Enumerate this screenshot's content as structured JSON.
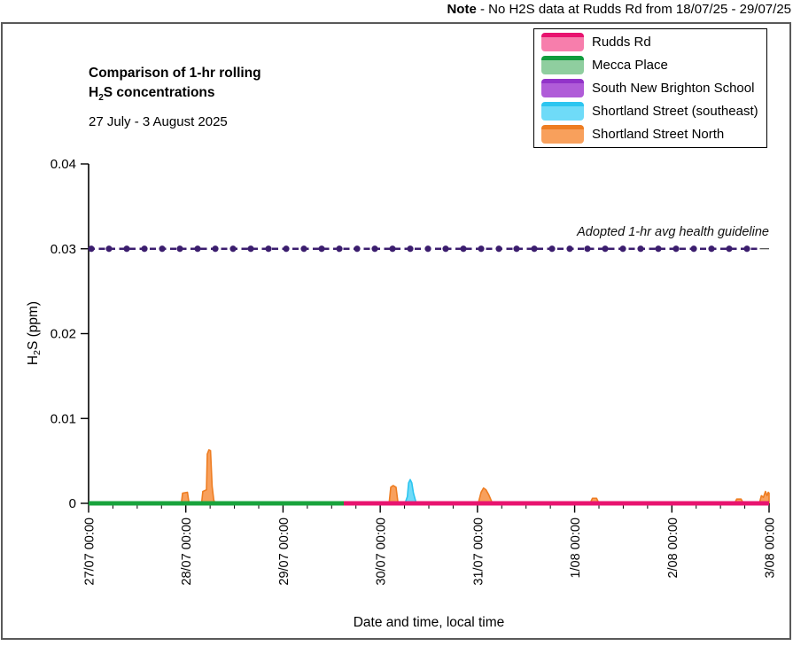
{
  "note": {
    "prefix": "Note",
    "rest": " - No H2S data at Rudds Rd from 18/07/25 - 29/07/25"
  },
  "title": {
    "line1": "Comparison of 1-hr rolling",
    "h2s_pre": "H",
    "h2s_sub": "2",
    "h2s_post": "S concentrations",
    "subtitle": "27 July - 3 August 2025"
  },
  "axis": {
    "y_pre": "H",
    "y_sub": "2",
    "y_post": "S (ppm)",
    "x_label": "Date and time, local time"
  },
  "legend": {
    "items": [
      {
        "label": "Rudds Rd",
        "fill": "#F77EAC",
        "stroke": "#E8136F"
      },
      {
        "label": "Mecca Place",
        "fill": "#8FCE9F",
        "stroke": "#119C3D"
      },
      {
        "label": "South New Brighton School",
        "fill": "#B05CD8",
        "stroke": "#9233C9"
      },
      {
        "label": "Shortland Street (southeast)",
        "fill": "#6FDBF8",
        "stroke": "#2CC5F0"
      },
      {
        "label": "Shortland Street North",
        "fill": "#F8A05C",
        "stroke": "#EE7D22"
      }
    ]
  },
  "colors": {
    "frame": "#595959",
    "axis": "#000000",
    "guideline": "#3B1D6E"
  },
  "chart_data": {
    "type": "line",
    "title": "Comparison of 1-hr rolling H2S concentrations",
    "subtitle": "27 July - 3 August 2025",
    "xlabel": "Date and time, local time",
    "ylabel": "H2S (ppm)",
    "ylim": [
      0,
      0.04
    ],
    "x_hours_range": [
      0,
      168
    ],
    "grid": false,
    "legend_position": "top-right",
    "y_ticks": [
      {
        "value": 0,
        "label": "0"
      },
      {
        "value": 0.01,
        "label": "0.01"
      },
      {
        "value": 0.02,
        "label": "0.02"
      },
      {
        "value": 0.03,
        "label": "0.03"
      },
      {
        "value": 0.04,
        "label": "0.04"
      }
    ],
    "x_ticks": [
      {
        "hour": 0,
        "label": "27/07 00:00"
      },
      {
        "hour": 24,
        "label": "28/07 00:00"
      },
      {
        "hour": 48,
        "label": "29/07 00:00"
      },
      {
        "hour": 72,
        "label": "30/07 00:00"
      },
      {
        "hour": 96,
        "label": "31/07 00:00"
      },
      {
        "hour": 120,
        "label": "1/08 00:00"
      },
      {
        "hour": 144,
        "label": "2/08 00:00"
      },
      {
        "hour": 168,
        "label": "3/08 00:00"
      }
    ],
    "minor_tick_hours": 6,
    "guideline": {
      "value": 0.03,
      "label": "Adopted 1-hr avg health guideline",
      "color": "#3B1D6E",
      "marker_start_hour": 0.66,
      "marker_interval_hours": 4.375,
      "marker_end_hour": 165.7
    },
    "series": [
      {
        "name": "Shortland Street North",
        "color": "#EE7D22",
        "fill": "#F8A05C",
        "spikes": [
          [
            [
              22.9,
              0
            ],
            [
              23.2,
              0.0012
            ],
            [
              24.4,
              0.0013
            ],
            [
              24.8,
              0
            ]
          ],
          [
            [
              27.9,
              0
            ],
            [
              28.2,
              0.0014
            ],
            [
              29.1,
              0.0016
            ],
            [
              29.3,
              0.0058
            ],
            [
              29.7,
              0.0063
            ],
            [
              30.1,
              0.0062
            ],
            [
              30.5,
              0.002
            ],
            [
              30.9,
              0.0004
            ],
            [
              31.2,
              0
            ]
          ],
          [
            [
              74.2,
              0
            ],
            [
              74.6,
              0.0019
            ],
            [
              75.2,
              0.0021
            ],
            [
              75.9,
              0.0019
            ],
            [
              76.4,
              0
            ]
          ],
          [
            [
              96.2,
              0
            ],
            [
              96.9,
              0.0013
            ],
            [
              97.5,
              0.0018
            ],
            [
              98.1,
              0.0016
            ],
            [
              98.8,
              0.001
            ],
            [
              99.7,
              0
            ]
          ],
          [
            [
              123.8,
              0
            ],
            [
              124.4,
              0.0006
            ],
            [
              125.4,
              0.0006
            ],
            [
              126.0,
              0
            ]
          ],
          [
            [
              159.5,
              0
            ],
            [
              160.0,
              0.0005
            ],
            [
              161.1,
              0.0005
            ],
            [
              161.7,
              0
            ]
          ],
          [
            [
              165.6,
              0
            ],
            [
              166.1,
              0.0009
            ],
            [
              166.6,
              0.0007
            ],
            [
              167.1,
              0.0014
            ],
            [
              167.5,
              0.0009
            ],
            [
              167.8,
              0.0013
            ],
            [
              168,
              0.0012
            ],
            [
              168,
              0
            ]
          ]
        ]
      },
      {
        "name": "Shortland Street (southeast)",
        "color": "#2CC5F0",
        "fill": "#6FDBF8",
        "spikes": [
          [
            [
              78.1,
              0
            ],
            [
              78.7,
              0.0008
            ],
            [
              79.0,
              0.0024
            ],
            [
              79.4,
              0.0028
            ],
            [
              79.8,
              0.0024
            ],
            [
              80.2,
              0.0012
            ],
            [
              80.9,
              0
            ]
          ]
        ]
      },
      {
        "name": "South New Brighton School",
        "color": "#9233C9",
        "fill": "#B05CD8",
        "points": []
      },
      {
        "name": "Mecca Place",
        "color": "#18A33C",
        "points": [
          [
            0,
            0
          ],
          [
            63.0,
            0
          ]
        ]
      },
      {
        "name": "Rudds Rd",
        "color": "#E8136F",
        "points": [
          [
            63.0,
            0
          ],
          [
            168,
            0
          ]
        ]
      }
    ]
  }
}
